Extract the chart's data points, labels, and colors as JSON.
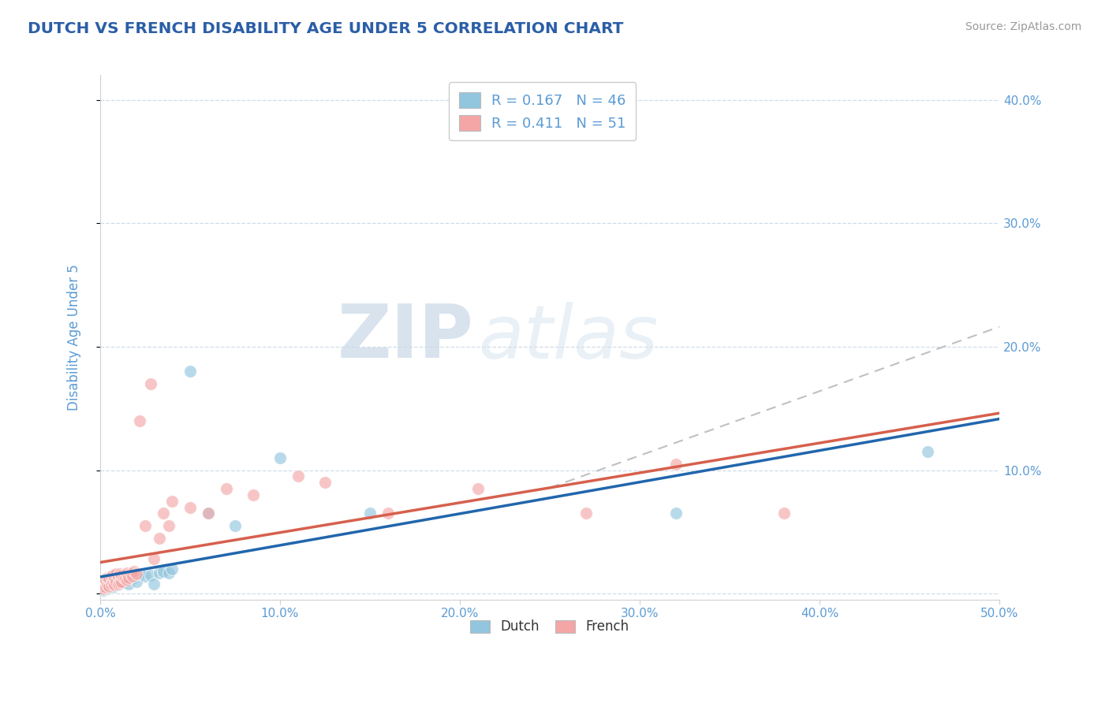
{
  "title": "DUTCH VS FRENCH DISABILITY AGE UNDER 5 CORRELATION CHART",
  "source": "Source: ZipAtlas.com",
  "ylabel": "Disability Age Under 5",
  "xlim": [
    0.0,
    0.5
  ],
  "ylim": [
    -0.005,
    0.42
  ],
  "xticks": [
    0.0,
    0.1,
    0.2,
    0.3,
    0.4,
    0.5
  ],
  "yticks": [
    0.0,
    0.1,
    0.2,
    0.3,
    0.4
  ],
  "xticklabels": [
    "0.0%",
    "10.0%",
    "20.0%",
    "30.0%",
    "40.0%",
    "50.0%"
  ],
  "yticklabels": [
    "",
    "10.0%",
    "20.0%",
    "30.0%",
    "40.0%"
  ],
  "dutch_color": "#92c5de",
  "french_color": "#f4a6a6",
  "dutch_line_color": "#2166ac",
  "french_line_color": "#d6604d",
  "dutch_R": 0.167,
  "dutch_N": 46,
  "french_R": 0.411,
  "french_N": 51,
  "title_color": "#2b5ea7",
  "axis_color": "#5b9bd5",
  "grid_color": "#d0dce8",
  "watermark_zip": "ZIP",
  "watermark_atlas": "atlas",
  "dutch_x": [
    0.001,
    0.002,
    0.002,
    0.003,
    0.003,
    0.004,
    0.004,
    0.005,
    0.005,
    0.006,
    0.006,
    0.007,
    0.007,
    0.008,
    0.008,
    0.009,
    0.009,
    0.01,
    0.01,
    0.011,
    0.011,
    0.012,
    0.012,
    0.013,
    0.014,
    0.015,
    0.015,
    0.016,
    0.017,
    0.018,
    0.02,
    0.022,
    0.025,
    0.028,
    0.03,
    0.033,
    0.035,
    0.038,
    0.04,
    0.05,
    0.06,
    0.075,
    0.1,
    0.15,
    0.32,
    0.46
  ],
  "dutch_y": [
    0.005,
    0.003,
    0.008,
    0.006,
    0.01,
    0.004,
    0.009,
    0.007,
    0.012,
    0.005,
    0.011,
    0.008,
    0.013,
    0.006,
    0.01,
    0.009,
    0.014,
    0.007,
    0.012,
    0.008,
    0.015,
    0.01,
    0.013,
    0.009,
    0.011,
    0.01,
    0.014,
    0.008,
    0.013,
    0.012,
    0.01,
    0.016,
    0.014,
    0.015,
    0.008,
    0.017,
    0.018,
    0.017,
    0.02,
    0.18,
    0.065,
    0.055,
    0.11,
    0.065,
    0.065,
    0.115
  ],
  "french_x": [
    0.001,
    0.002,
    0.002,
    0.003,
    0.003,
    0.004,
    0.004,
    0.005,
    0.005,
    0.006,
    0.006,
    0.007,
    0.007,
    0.008,
    0.008,
    0.009,
    0.009,
    0.01,
    0.01,
    0.011,
    0.011,
    0.012,
    0.012,
    0.013,
    0.014,
    0.015,
    0.015,
    0.016,
    0.017,
    0.018,
    0.019,
    0.02,
    0.022,
    0.025,
    0.028,
    0.03,
    0.033,
    0.035,
    0.038,
    0.04,
    0.05,
    0.06,
    0.07,
    0.085,
    0.11,
    0.125,
    0.16,
    0.21,
    0.27,
    0.32,
    0.38
  ],
  "french_y": [
    0.006,
    0.004,
    0.009,
    0.005,
    0.011,
    0.007,
    0.013,
    0.006,
    0.012,
    0.008,
    0.014,
    0.009,
    0.015,
    0.007,
    0.013,
    0.01,
    0.016,
    0.008,
    0.014,
    0.009,
    0.016,
    0.01,
    0.015,
    0.013,
    0.012,
    0.011,
    0.017,
    0.013,
    0.016,
    0.014,
    0.018,
    0.016,
    0.14,
    0.055,
    0.17,
    0.028,
    0.045,
    0.065,
    0.055,
    0.075,
    0.07,
    0.065,
    0.085,
    0.08,
    0.095,
    0.09,
    0.065,
    0.085,
    0.065,
    0.105,
    0.065
  ]
}
